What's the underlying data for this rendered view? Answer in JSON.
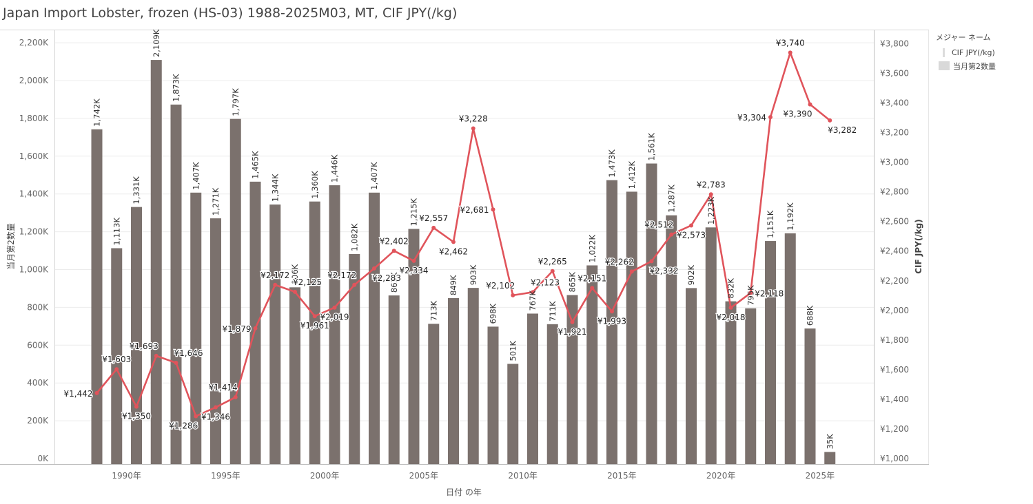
{
  "title": "Japan Import Lobster, frozen (HS-03) 1988-2025M03, MT, CIF JPY(/kg)",
  "legend": {
    "title": "メジャー ネーム",
    "items": [
      "CIF JPY(/kg)",
      "当月第2数量"
    ]
  },
  "colors": {
    "bar": "#7b716d",
    "line": "#e0545b",
    "grid": "#ececec",
    "axis": "#999999"
  },
  "chart_data": {
    "type": "bar+line",
    "xlabel": "日付 の年",
    "ylabel_left": "当月第2数量",
    "ylabel_right": "CIF JPY(/kg)",
    "ylim_left": [
      0,
      2250000
    ],
    "ylim_right": [
      1000,
      3900
    ],
    "grid": true,
    "legend_position": "right",
    "x_ticks": [
      {
        "year": 1990,
        "label": "1990年"
      },
      {
        "year": 1995,
        "label": "1995年"
      },
      {
        "year": 2000,
        "label": "2000年"
      },
      {
        "year": 2005,
        "label": "2005年"
      },
      {
        "year": 2010,
        "label": "2010年"
      },
      {
        "year": 2015,
        "label": "2015年"
      },
      {
        "year": 2020,
        "label": "2020年"
      },
      {
        "year": 2025,
        "label": "2025年"
      }
    ],
    "left_ticks": [
      {
        "v": 0,
        "label": "0K"
      },
      {
        "v": 200000,
        "label": "200K"
      },
      {
        "v": 400000,
        "label": "400K"
      },
      {
        "v": 600000,
        "label": "600K"
      },
      {
        "v": 800000,
        "label": "800K"
      },
      {
        "v": 1000000,
        "label": "1,000K"
      },
      {
        "v": 1200000,
        "label": "1,200K"
      },
      {
        "v": 1400000,
        "label": "1,400K"
      },
      {
        "v": 1600000,
        "label": "1,600K"
      },
      {
        "v": 1800000,
        "label": "1,800K"
      },
      {
        "v": 2000000,
        "label": "2,000K"
      },
      {
        "v": 2200000,
        "label": "2,200K"
      }
    ],
    "right_ticks": [
      {
        "v": 1000,
        "label": "¥1,000"
      },
      {
        "v": 1200,
        "label": "¥1,200"
      },
      {
        "v": 1400,
        "label": "¥1,400"
      },
      {
        "v": 1600,
        "label": "¥1,600"
      },
      {
        "v": 1800,
        "label": "¥1,800"
      },
      {
        "v": 2000,
        "label": "¥2,000"
      },
      {
        "v": 2200,
        "label": "¥2,200"
      },
      {
        "v": 2400,
        "label": "¥2,400"
      },
      {
        "v": 2600,
        "label": "¥2,600"
      },
      {
        "v": 2800,
        "label": "¥2,800"
      },
      {
        "v": 3000,
        "label": "¥3,000"
      },
      {
        "v": 3200,
        "label": "¥3,200"
      },
      {
        "v": 3400,
        "label": "¥3,400"
      },
      {
        "v": 3600,
        "label": "¥3,600"
      },
      {
        "v": 3800,
        "label": "¥3,800"
      }
    ],
    "bars": {
      "name": "当月第2数量",
      "points": [
        {
          "year": 1989,
          "value": 1742000,
          "label": "1,742K"
        },
        {
          "year": 1990,
          "value": 1113000,
          "label": "1,113K"
        },
        {
          "year": 1991,
          "value": 1331000,
          "label": "1,331K"
        },
        {
          "year": 1992,
          "value": 2109000,
          "label": "2,109K"
        },
        {
          "year": 1993,
          "value": 1873000,
          "label": "1,873K"
        },
        {
          "year": 1994,
          "value": 1407000,
          "label": "1,407K"
        },
        {
          "year": 1995,
          "value": 1271000,
          "label": "1,271K"
        },
        {
          "year": 1996,
          "value": 1797000,
          "label": "1,797K"
        },
        {
          "year": 1997,
          "value": 1465000,
          "label": "1,465K"
        },
        {
          "year": 1998,
          "value": 1344000,
          "label": "1,344K"
        },
        {
          "year": 1999,
          "value": 906000,
          "label": "906K"
        },
        {
          "year": 2000,
          "value": 1360000,
          "label": "1,360K"
        },
        {
          "year": 2001,
          "value": 1446000,
          "label": "1,446K"
        },
        {
          "year": 2002,
          "value": 1082000,
          "label": "1,082K"
        },
        {
          "year": 2003,
          "value": 1407000,
          "label": "1,407K"
        },
        {
          "year": 2004,
          "value": 863000,
          "label": "863K"
        },
        {
          "year": 2005,
          "value": 1215000,
          "label": "1,215K"
        },
        {
          "year": 2006,
          "value": 713000,
          "label": "713K"
        },
        {
          "year": 2007,
          "value": 849000,
          "label": "849K"
        },
        {
          "year": 2008,
          "value": 903000,
          "label": "903K"
        },
        {
          "year": 2009,
          "value": 698000,
          "label": "698K"
        },
        {
          "year": 2010,
          "value": 501000,
          "label": "501K"
        },
        {
          "year": 2011,
          "value": 767000,
          "label": "767K"
        },
        {
          "year": 2012,
          "value": 711000,
          "label": "711K"
        },
        {
          "year": 2013,
          "value": 865000,
          "label": "865K"
        },
        {
          "year": 2014,
          "value": 1022000,
          "label": "1,022K"
        },
        {
          "year": 2015,
          "value": 1473000,
          "label": "1,473K"
        },
        {
          "year": 2016,
          "value": 1412000,
          "label": "1,412K"
        },
        {
          "year": 2017,
          "value": 1561000,
          "label": "1,561K"
        },
        {
          "year": 2018,
          "value": 1287000,
          "label": "1,287K"
        },
        {
          "year": 2019,
          "value": 902000,
          "label": "902K"
        },
        {
          "year": 2020,
          "value": 1223000,
          "label": "1,223K"
        },
        {
          "year": 2021,
          "value": 832000,
          "label": "832K"
        },
        {
          "year": 2022,
          "value": 795000,
          "label": "795K"
        },
        {
          "year": 2023,
          "value": 1151000,
          "label": "1,151K"
        },
        {
          "year": 2024,
          "value": 1192000,
          "label": "1,192K"
        },
        {
          "year": 2025,
          "value": 688000,
          "label": "688K"
        },
        {
          "year": 2026,
          "value": 35000,
          "label": "35K"
        }
      ]
    },
    "line": {
      "name": "CIF JPY(/kg)",
      "points": [
        {
          "year": 1989,
          "value": 1442,
          "label": "¥1,442",
          "pos": "left"
        },
        {
          "year": 1990,
          "value": 1603,
          "label": "¥1,603",
          "pos": "above"
        },
        {
          "year": 1991,
          "value": 1350,
          "label": "¥1,350",
          "pos": "below"
        },
        {
          "year": 1992,
          "value": 1693,
          "label": "¥1,693",
          "pos": "above-left"
        },
        {
          "year": 1993,
          "value": 1646,
          "label": "¥1,646",
          "pos": "above-right"
        },
        {
          "year": 1994,
          "value": 1286,
          "label": "¥1,286",
          "pos": "below-left"
        },
        {
          "year": 1995,
          "value": 1346,
          "label": "¥1,346",
          "pos": "below"
        },
        {
          "year": 1996,
          "value": 1414,
          "label": "¥1,414",
          "pos": "above-left"
        },
        {
          "year": 1997,
          "value": 1879,
          "label": "¥1,879",
          "pos": "left"
        },
        {
          "year": 1998,
          "value": 2172,
          "label": "¥2,172",
          "pos": "above"
        },
        {
          "year": 1999,
          "value": 2125,
          "label": "¥2,125",
          "pos": "above-right"
        },
        {
          "year": 2000,
          "value": 1961,
          "label": "¥1,961",
          "pos": "below"
        },
        {
          "year": 2001,
          "value": 2019,
          "label": "¥2,019",
          "pos": "below"
        },
        {
          "year": 2002,
          "value": 2172,
          "label": "¥2,172",
          "pos": "above-left"
        },
        {
          "year": 2003,
          "value": 2283,
          "label": "¥2,283",
          "pos": "below-right"
        },
        {
          "year": 2004,
          "value": 2402,
          "label": "¥2,402",
          "pos": "above"
        },
        {
          "year": 2005,
          "value": 2334,
          "label": "¥2,334",
          "pos": "below"
        },
        {
          "year": 2006,
          "value": 2557,
          "label": "¥2,557",
          "pos": "above"
        },
        {
          "year": 2007,
          "value": 2462,
          "label": "¥2,462",
          "pos": "below"
        },
        {
          "year": 2008,
          "value": 3228,
          "label": "¥3,228",
          "pos": "above"
        },
        {
          "year": 2009,
          "value": 2681,
          "label": "¥2,681",
          "pos": "left"
        },
        {
          "year": 2010,
          "value": 2102,
          "label": "¥2,102",
          "pos": "above-left"
        },
        {
          "year": 2011,
          "value": 2123,
          "label": "¥2,123",
          "pos": "above-right"
        },
        {
          "year": 2012,
          "value": 2265,
          "label": "¥2,265",
          "pos": "above"
        },
        {
          "year": 2013,
          "value": 1921,
          "label": "¥1,921",
          "pos": "below"
        },
        {
          "year": 2014,
          "value": 2151,
          "label": "¥2,151",
          "pos": "above"
        },
        {
          "year": 2015,
          "value": 1993,
          "label": "¥1,993",
          "pos": "below"
        },
        {
          "year": 2016,
          "value": 2262,
          "label": "¥2,262",
          "pos": "above-left"
        },
        {
          "year": 2017,
          "value": 2332,
          "label": "¥2,332",
          "pos": "below-right"
        },
        {
          "year": 2018,
          "value": 2512,
          "label": "¥2,512",
          "pos": "above-left"
        },
        {
          "year": 2019,
          "value": 2573,
          "label": "¥2,573",
          "pos": "below"
        },
        {
          "year": 2020,
          "value": 2783,
          "label": "¥2,783",
          "pos": "above"
        },
        {
          "year": 2021,
          "value": 2018,
          "label": "¥2,018",
          "pos": "below"
        },
        {
          "year": 2022,
          "value": 2118,
          "label": "¥2,118",
          "pos": "right"
        },
        {
          "year": 2023,
          "value": 3304,
          "label": "¥3,304",
          "pos": "left"
        },
        {
          "year": 2024,
          "value": 3740,
          "label": "¥3,740",
          "pos": "above"
        },
        {
          "year": 2025,
          "value": 3390,
          "label": "¥3,390",
          "pos": "below-left"
        },
        {
          "year": 2026,
          "value": 3282,
          "label": "¥3,282",
          "pos": "below-right"
        }
      ]
    }
  }
}
